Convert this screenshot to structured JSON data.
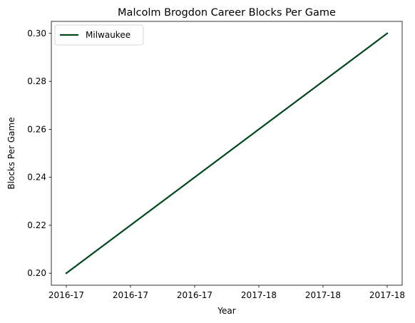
{
  "chart_data": {
    "type": "line",
    "title": "Malcolm Brogdon Career Blocks Per Game",
    "xlabel": "Year",
    "ylabel": "Blocks Per Game",
    "x_tick_labels": [
      "2016-17",
      "2016-17",
      "2016-17",
      "2017-18",
      "2017-18",
      "2017-18"
    ],
    "y_ticks": [
      0.2,
      0.22,
      0.24,
      0.26,
      0.28,
      0.3
    ],
    "ylim": [
      0.195,
      0.305
    ],
    "grid": false,
    "legend_position": "upper-left",
    "series": [
      {
        "name": "Milwaukee",
        "color": "#00471b",
        "x": [
          "2016-17",
          "2017-18"
        ],
        "y": [
          0.2,
          0.3
        ]
      }
    ]
  }
}
